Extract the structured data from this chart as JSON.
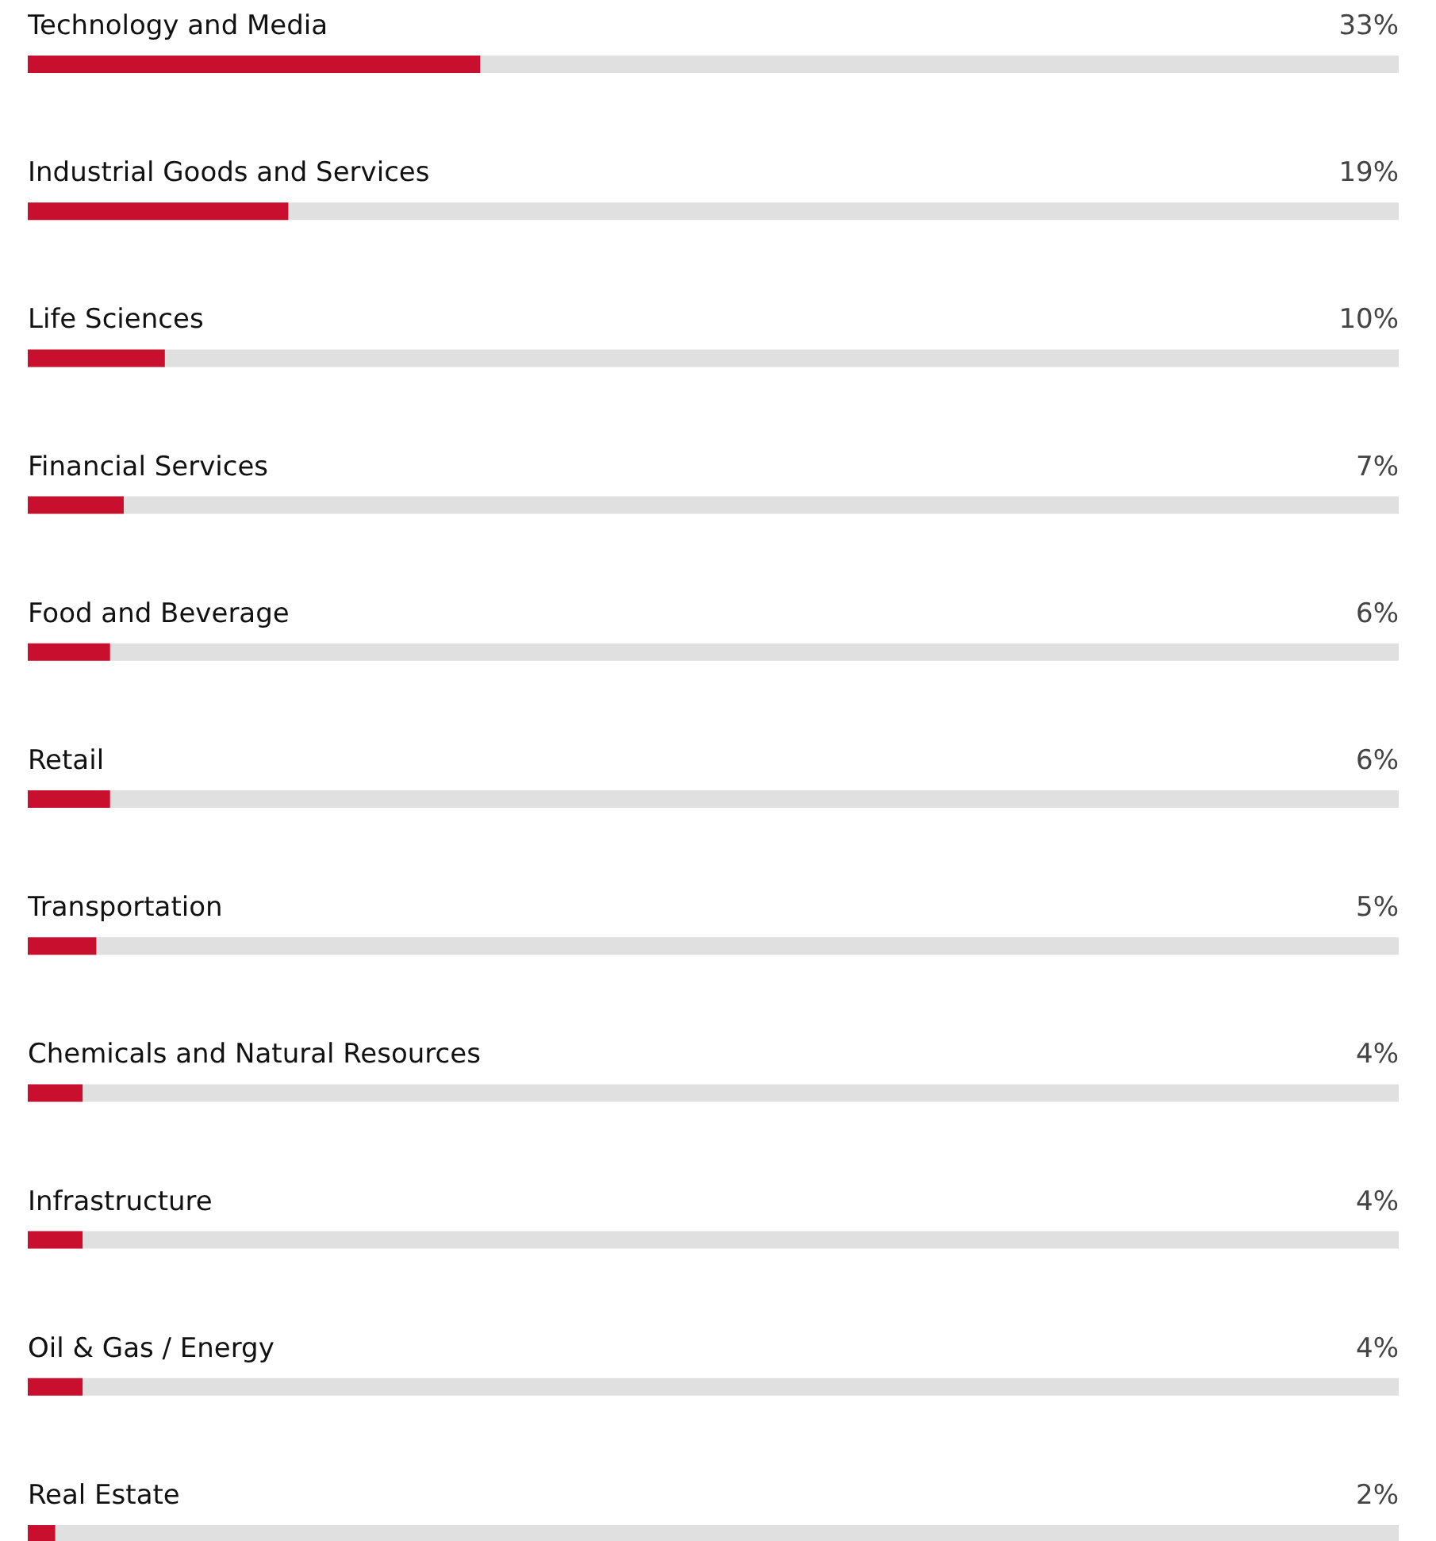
{
  "chart_data": {
    "type": "bar",
    "orientation": "horizontal",
    "xlim": [
      0,
      100
    ],
    "tick_labels": false,
    "grid": false,
    "categories": [
      "Technology and Media",
      "Industrial Goods and Services",
      "Life Sciences",
      "Financial Services",
      "Food and Beverage",
      "Retail",
      "Transportation",
      "Chemicals and Natural Resources",
      "Infrastructure",
      "Oil & Gas / Energy",
      "Real Estate"
    ],
    "series": [
      {
        "color": "#c8102e",
        "values": [
          33,
          19,
          10,
          7,
          6,
          6,
          5,
          4,
          4,
          4,
          2
        ],
        "value_labels": [
          "33%",
          "19%",
          "10%",
          "7%",
          "6%",
          "6%",
          "5%",
          "4%",
          "4%",
          "4%",
          "2%"
        ]
      }
    ]
  }
}
